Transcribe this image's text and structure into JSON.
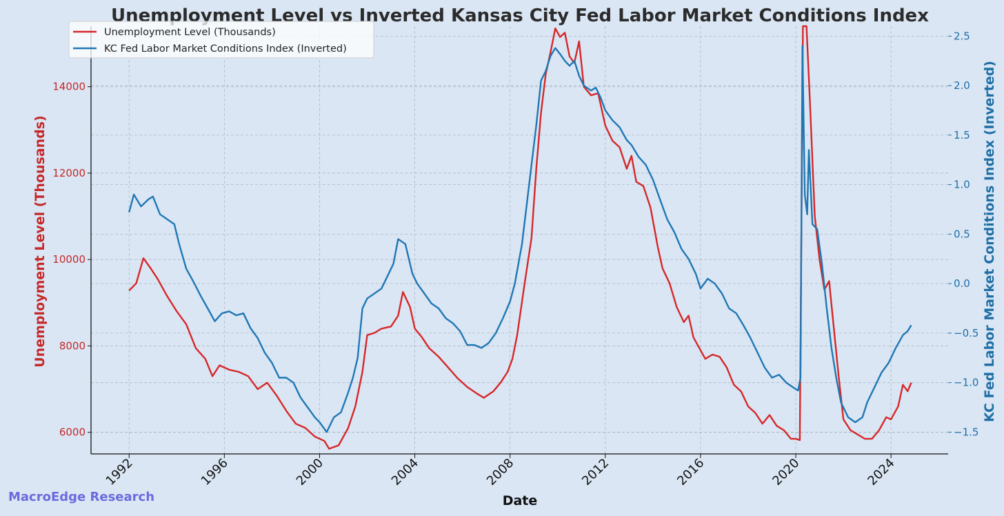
{
  "chart_data": {
    "type": "line",
    "title": "Unemployment Level vs Inverted Kansas City Fed Labor Market Conditions Index",
    "xlabel": "Date",
    "xlim": [
      1990.4,
      2026.4
    ],
    "x_ticks": [
      "1992",
      "1996",
      "2000",
      "2004",
      "2008",
      "2012",
      "2016",
      "2020",
      "2024"
    ],
    "left_axis": {
      "label": "Unemployment Level (Thousands)",
      "ylim": [
        5500,
        15400
      ],
      "ticks": [
        "6000",
        "8000",
        "10000",
        "12000",
        "14000"
      ],
      "color": "#c62828"
    },
    "right_axis": {
      "label": "KC Fed Labor Market Conditions Index (Inverted)",
      "ylim": [
        -1.72,
        2.6
      ],
      "ticks": [
        "−1.5",
        "−1.0",
        "−0.5",
        "0.0",
        "0.5",
        "1.0",
        "1.5",
        "2.0",
        "2.5"
      ],
      "color": "#1f6fa6"
    },
    "grid": true,
    "legend_position": "top-left",
    "series": [
      {
        "name": "Unemployment Level (Thousands)",
        "axis": "left",
        "color": "#d62728",
        "points": [
          [
            1992.0,
            9280
          ],
          [
            1992.3,
            9450
          ],
          [
            1992.6,
            10030
          ],
          [
            1992.9,
            9800
          ],
          [
            1993.2,
            9550
          ],
          [
            1993.6,
            9150
          ],
          [
            1994.0,
            8800
          ],
          [
            1994.4,
            8500
          ],
          [
            1994.8,
            7950
          ],
          [
            1995.2,
            7700
          ],
          [
            1995.5,
            7300
          ],
          [
            1995.8,
            7550
          ],
          [
            1996.2,
            7450
          ],
          [
            1996.6,
            7400
          ],
          [
            1997.0,
            7300
          ],
          [
            1997.4,
            7000
          ],
          [
            1997.8,
            7150
          ],
          [
            1998.2,
            6850
          ],
          [
            1998.6,
            6500
          ],
          [
            1999.0,
            6200
          ],
          [
            1999.4,
            6100
          ],
          [
            1999.8,
            5900
          ],
          [
            2000.2,
            5800
          ],
          [
            2000.4,
            5620
          ],
          [
            2000.8,
            5700
          ],
          [
            2001.2,
            6100
          ],
          [
            2001.5,
            6600
          ],
          [
            2001.8,
            7400
          ],
          [
            2002.0,
            8250
          ],
          [
            2002.3,
            8300
          ],
          [
            2002.6,
            8400
          ],
          [
            2003.0,
            8450
          ],
          [
            2003.3,
            8700
          ],
          [
            2003.5,
            9250
          ],
          [
            2003.8,
            8900
          ],
          [
            2004.0,
            8400
          ],
          [
            2004.3,
            8200
          ],
          [
            2004.6,
            7950
          ],
          [
            2005.0,
            7750
          ],
          [
            2005.4,
            7500
          ],
          [
            2005.8,
            7250
          ],
          [
            2006.2,
            7050
          ],
          [
            2006.6,
            6900
          ],
          [
            2006.9,
            6800
          ],
          [
            2007.3,
            6950
          ],
          [
            2007.6,
            7150
          ],
          [
            2007.9,
            7400
          ],
          [
            2008.1,
            7700
          ],
          [
            2008.3,
            8250
          ],
          [
            2008.6,
            9400
          ],
          [
            2008.9,
            10500
          ],
          [
            2009.1,
            12100
          ],
          [
            2009.3,
            13400
          ],
          [
            2009.5,
            14300
          ],
          [
            2009.7,
            14800
          ],
          [
            2009.9,
            15350
          ],
          [
            2010.1,
            15150
          ],
          [
            2010.3,
            15250
          ],
          [
            2010.5,
            14700
          ],
          [
            2010.7,
            14550
          ],
          [
            2010.9,
            15050
          ],
          [
            2011.1,
            14000
          ],
          [
            2011.4,
            13800
          ],
          [
            2011.7,
            13850
          ],
          [
            2012.0,
            13100
          ],
          [
            2012.3,
            12750
          ],
          [
            2012.6,
            12600
          ],
          [
            2012.9,
            12100
          ],
          [
            2013.1,
            12400
          ],
          [
            2013.3,
            11800
          ],
          [
            2013.6,
            11700
          ],
          [
            2013.9,
            11200
          ],
          [
            2014.2,
            10300
          ],
          [
            2014.4,
            9800
          ],
          [
            2014.7,
            9450
          ],
          [
            2015.0,
            8900
          ],
          [
            2015.3,
            8550
          ],
          [
            2015.5,
            8700
          ],
          [
            2015.7,
            8200
          ],
          [
            2016.0,
            7900
          ],
          [
            2016.2,
            7700
          ],
          [
            2016.5,
            7800
          ],
          [
            2016.8,
            7750
          ],
          [
            2017.1,
            7500
          ],
          [
            2017.4,
            7100
          ],
          [
            2017.7,
            6950
          ],
          [
            2018.0,
            6600
          ],
          [
            2018.3,
            6450
          ],
          [
            2018.6,
            6200
          ],
          [
            2018.9,
            6400
          ],
          [
            2019.2,
            6150
          ],
          [
            2019.5,
            6050
          ],
          [
            2019.8,
            5850
          ],
          [
            2020.0,
            5850
          ],
          [
            2020.17,
            5820
          ],
          [
            2020.3,
            15400
          ],
          [
            2020.45,
            15400
          ],
          [
            2020.6,
            13600
          ],
          [
            2020.8,
            11000
          ],
          [
            2021.0,
            10000
          ],
          [
            2021.2,
            9300
          ],
          [
            2021.4,
            9500
          ],
          [
            2021.6,
            8400
          ],
          [
            2021.8,
            7300
          ],
          [
            2022.0,
            6300
          ],
          [
            2022.3,
            6050
          ],
          [
            2022.6,
            5950
          ],
          [
            2022.9,
            5850
          ],
          [
            2023.2,
            5850
          ],
          [
            2023.5,
            6050
          ],
          [
            2023.8,
            6350
          ],
          [
            2024.0,
            6300
          ],
          [
            2024.3,
            6600
          ],
          [
            2024.5,
            7100
          ],
          [
            2024.7,
            6950
          ],
          [
            2024.85,
            7150
          ]
        ]
      },
      {
        "name": "KC Fed Labor Market Conditions Index (Inverted)",
        "axis": "right",
        "color": "#1f77b4",
        "points": [
          [
            1992.0,
            0.72
          ],
          [
            1992.2,
            0.9
          ],
          [
            1992.5,
            0.78
          ],
          [
            1992.8,
            0.85
          ],
          [
            1993.0,
            0.88
          ],
          [
            1993.3,
            0.7
          ],
          [
            1993.6,
            0.65
          ],
          [
            1993.9,
            0.6
          ],
          [
            1994.1,
            0.4
          ],
          [
            1994.4,
            0.15
          ],
          [
            1994.7,
            0.02
          ],
          [
            1995.0,
            -0.12
          ],
          [
            1995.3,
            -0.25
          ],
          [
            1995.6,
            -0.38
          ],
          [
            1995.9,
            -0.3
          ],
          [
            1996.2,
            -0.28
          ],
          [
            1996.5,
            -0.32
          ],
          [
            1996.8,
            -0.3
          ],
          [
            1997.1,
            -0.45
          ],
          [
            1997.4,
            -0.55
          ],
          [
            1997.7,
            -0.7
          ],
          [
            1998.0,
            -0.8
          ],
          [
            1998.3,
            -0.95
          ],
          [
            1998.6,
            -0.95
          ],
          [
            1998.9,
            -1.0
          ],
          [
            1999.2,
            -1.15
          ],
          [
            1999.5,
            -1.25
          ],
          [
            1999.8,
            -1.35
          ],
          [
            2000.0,
            -1.4
          ],
          [
            2000.3,
            -1.5
          ],
          [
            2000.6,
            -1.35
          ],
          [
            2000.9,
            -1.3
          ],
          [
            2001.2,
            -1.1
          ],
          [
            2001.4,
            -0.95
          ],
          [
            2001.6,
            -0.75
          ],
          [
            2001.8,
            -0.25
          ],
          [
            2002.0,
            -0.15
          ],
          [
            2002.3,
            -0.1
          ],
          [
            2002.6,
            -0.05
          ],
          [
            2002.9,
            0.1
          ],
          [
            2003.1,
            0.2
          ],
          [
            2003.3,
            0.45
          ],
          [
            2003.6,
            0.4
          ],
          [
            2003.9,
            0.1
          ],
          [
            2004.1,
            0.0
          ],
          [
            2004.4,
            -0.1
          ],
          [
            2004.7,
            -0.2
          ],
          [
            2005.0,
            -0.25
          ],
          [
            2005.3,
            -0.35
          ],
          [
            2005.6,
            -0.4
          ],
          [
            2005.9,
            -0.48
          ],
          [
            2006.2,
            -0.62
          ],
          [
            2006.5,
            -0.62
          ],
          [
            2006.8,
            -0.65
          ],
          [
            2007.1,
            -0.6
          ],
          [
            2007.4,
            -0.5
          ],
          [
            2007.7,
            -0.35
          ],
          [
            2008.0,
            -0.18
          ],
          [
            2008.2,
            0.0
          ],
          [
            2008.5,
            0.4
          ],
          [
            2008.7,
            0.8
          ],
          [
            2008.9,
            1.2
          ],
          [
            2009.1,
            1.6
          ],
          [
            2009.3,
            2.05
          ],
          [
            2009.5,
            2.15
          ],
          [
            2009.7,
            2.3
          ],
          [
            2009.9,
            2.38
          ],
          [
            2010.1,
            2.32
          ],
          [
            2010.3,
            2.25
          ],
          [
            2010.5,
            2.2
          ],
          [
            2010.7,
            2.25
          ],
          [
            2010.9,
            2.1
          ],
          [
            2011.1,
            2.0
          ],
          [
            2011.4,
            1.95
          ],
          [
            2011.6,
            1.98
          ],
          [
            2011.8,
            1.88
          ],
          [
            2012.0,
            1.75
          ],
          [
            2012.3,
            1.65
          ],
          [
            2012.6,
            1.58
          ],
          [
            2012.9,
            1.45
          ],
          [
            2013.1,
            1.4
          ],
          [
            2013.4,
            1.28
          ],
          [
            2013.7,
            1.2
          ],
          [
            2014.0,
            1.05
          ],
          [
            2014.3,
            0.85
          ],
          [
            2014.6,
            0.65
          ],
          [
            2014.9,
            0.52
          ],
          [
            2015.2,
            0.35
          ],
          [
            2015.5,
            0.25
          ],
          [
            2015.8,
            0.1
          ],
          [
            2016.0,
            -0.05
          ],
          [
            2016.3,
            0.05
          ],
          [
            2016.6,
            0.0
          ],
          [
            2016.9,
            -0.1
          ],
          [
            2017.2,
            -0.25
          ],
          [
            2017.5,
            -0.3
          ],
          [
            2017.8,
            -0.42
          ],
          [
            2018.1,
            -0.55
          ],
          [
            2018.4,
            -0.7
          ],
          [
            2018.7,
            -0.85
          ],
          [
            2019.0,
            -0.95
          ],
          [
            2019.3,
            -0.92
          ],
          [
            2019.6,
            -1.0
          ],
          [
            2019.9,
            -1.05
          ],
          [
            2020.1,
            -1.08
          ],
          [
            2020.2,
            -0.95
          ],
          [
            2020.28,
            2.4
          ],
          [
            2020.38,
            0.9
          ],
          [
            2020.48,
            0.7
          ],
          [
            2020.55,
            1.35
          ],
          [
            2020.7,
            0.6
          ],
          [
            2020.9,
            0.55
          ],
          [
            2021.1,
            0.2
          ],
          [
            2021.3,
            -0.25
          ],
          [
            2021.5,
            -0.65
          ],
          [
            2021.7,
            -0.95
          ],
          [
            2021.9,
            -1.2
          ],
          [
            2022.2,
            -1.35
          ],
          [
            2022.5,
            -1.4
          ],
          [
            2022.8,
            -1.35
          ],
          [
            2023.0,
            -1.2
          ],
          [
            2023.3,
            -1.05
          ],
          [
            2023.6,
            -0.9
          ],
          [
            2023.9,
            -0.8
          ],
          [
            2024.2,
            -0.65
          ],
          [
            2024.5,
            -0.52
          ],
          [
            2024.7,
            -0.48
          ],
          [
            2024.85,
            -0.42
          ]
        ]
      }
    ],
    "watermark": "MacroEdge Research"
  }
}
